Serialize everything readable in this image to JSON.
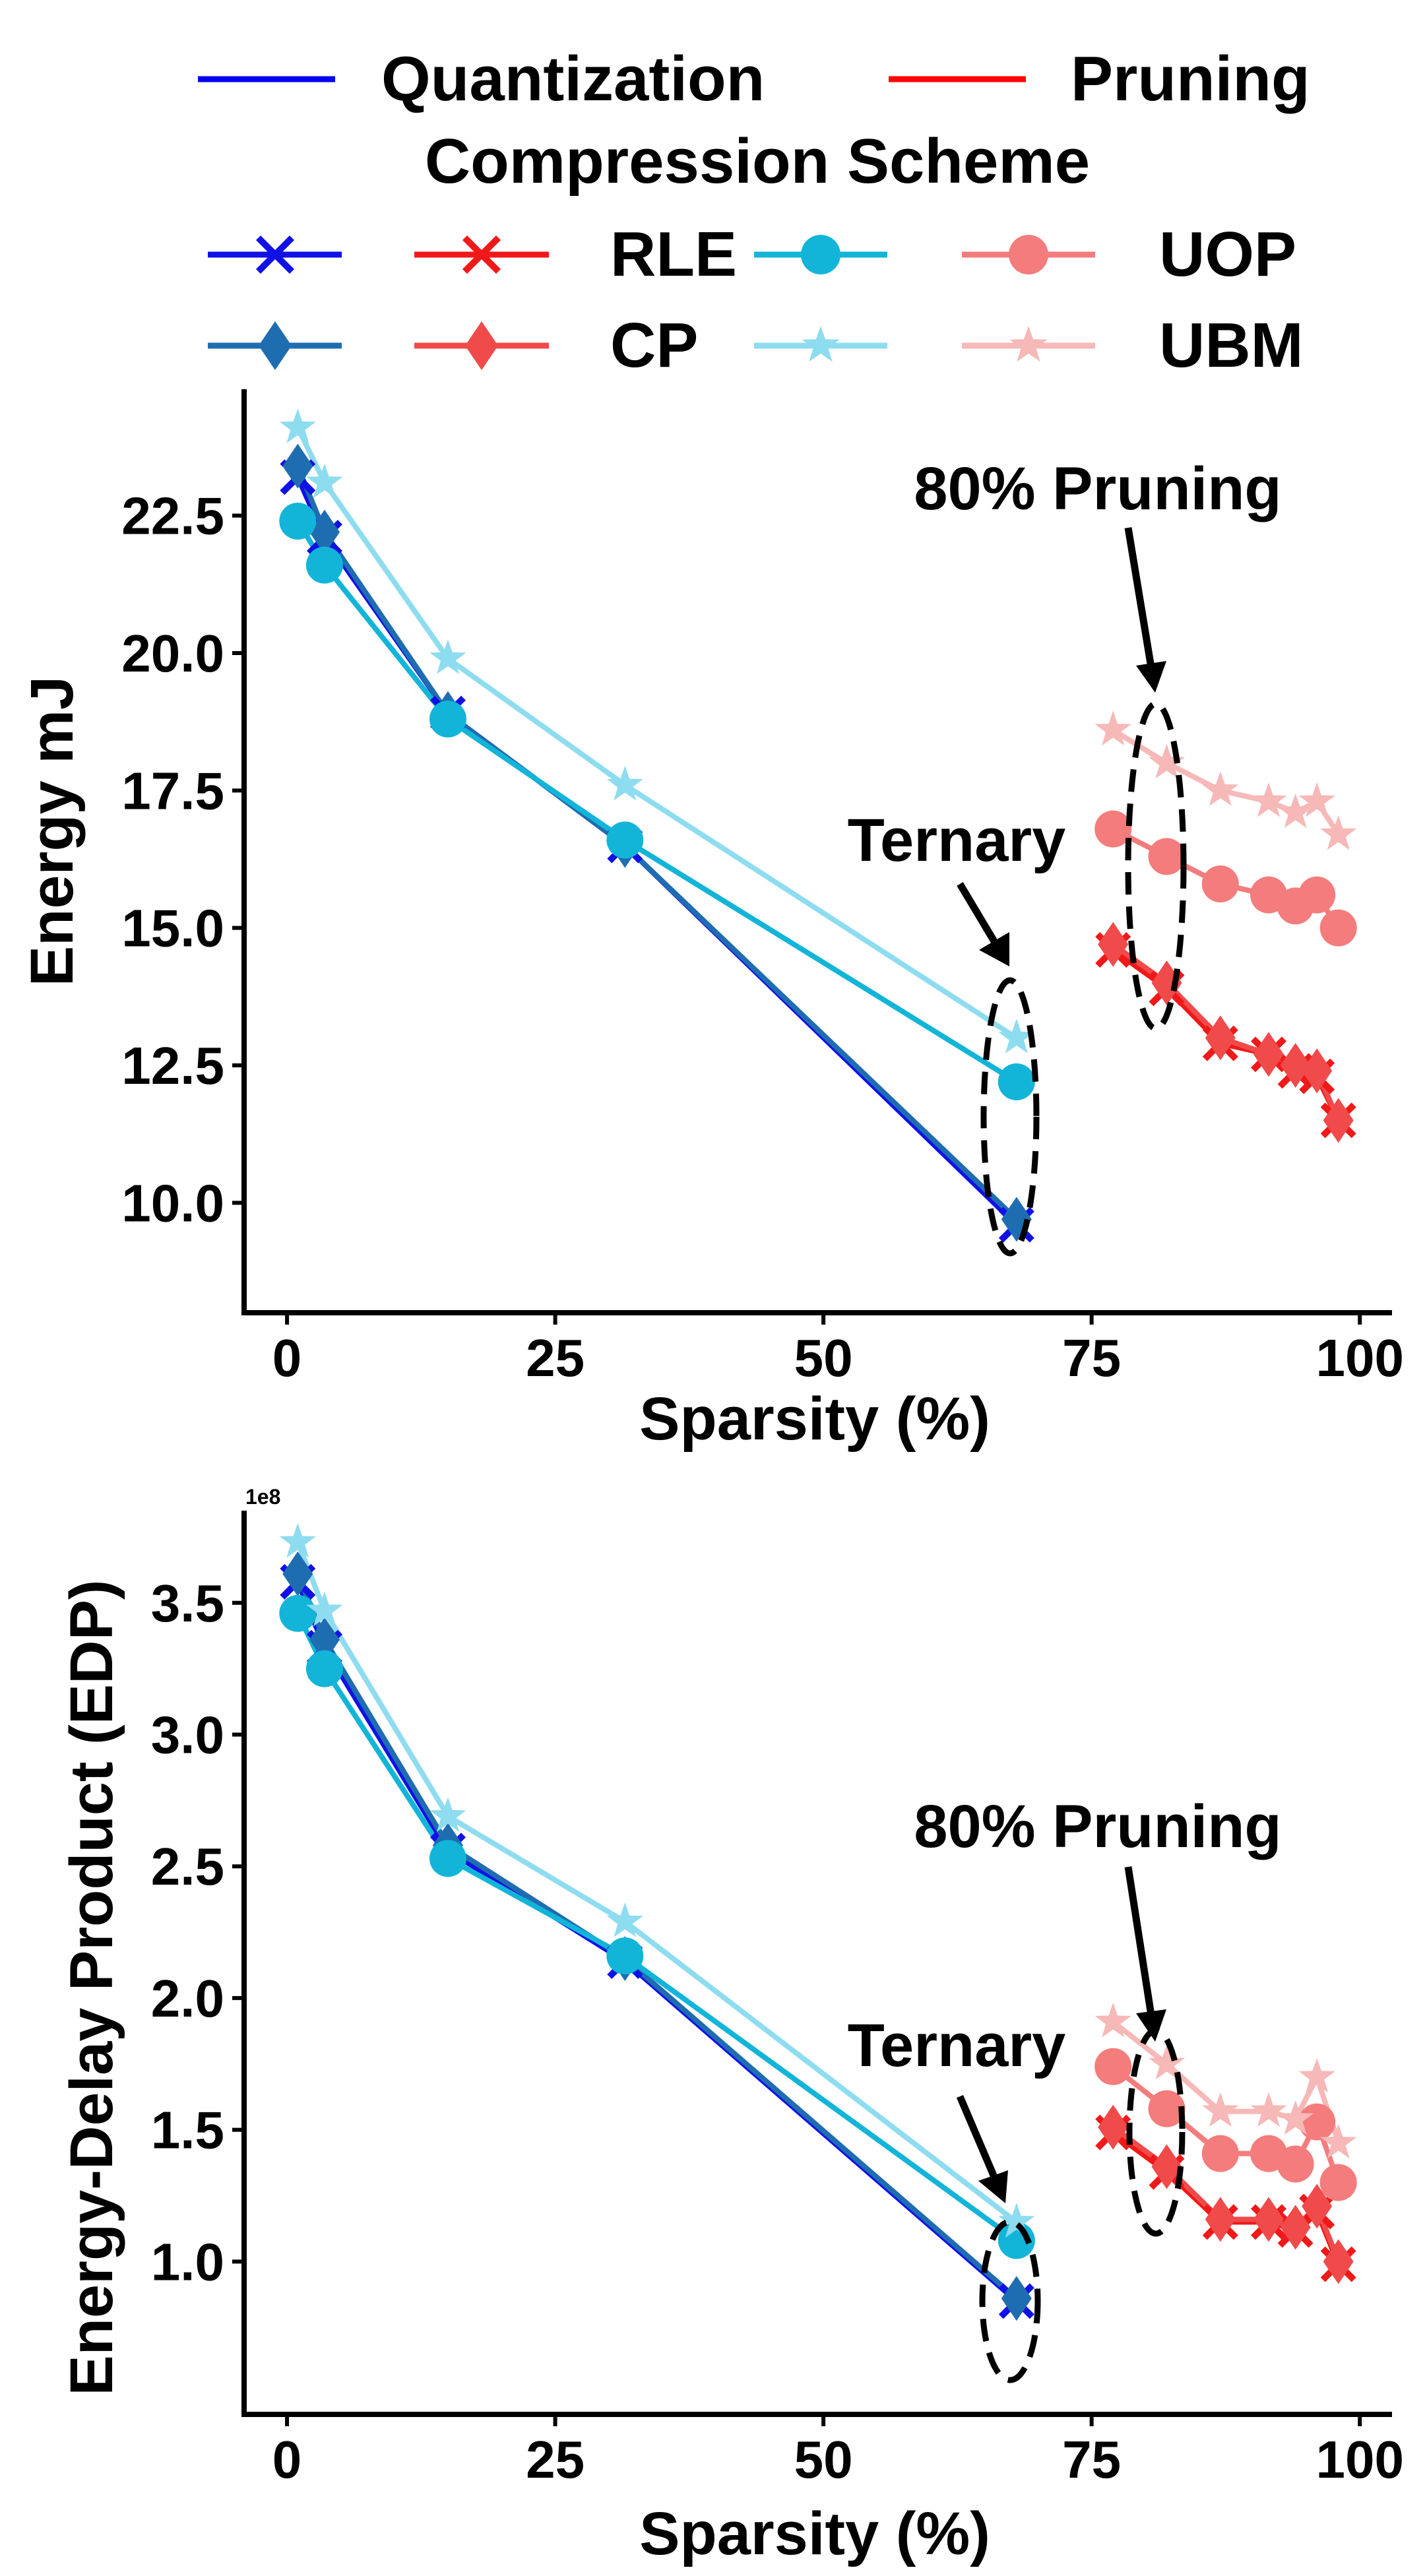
{
  "colors": {
    "quantization": "#0000ee",
    "pruning": "#ff0000",
    "q_rle": "#1111e6",
    "q_cp": "#1f6db1",
    "q_uop": "#12b5d8",
    "q_ubm": "#8edcef",
    "p_rle": "#f01818",
    "p_cp": "#f04a4a",
    "p_uop": "#f47c7c",
    "p_ubm": "#f7b8b8"
  },
  "legend": {
    "quantization": "Quantization",
    "pruning": "Pruning",
    "title": "Compression Scheme",
    "rle": "RLE",
    "cp": "CP",
    "uop": "UOP",
    "ubm": "UBM"
  },
  "chart_data": [
    {
      "type": "line",
      "xlabel": "Sparsity (%)",
      "ylabel": "Energy mJ",
      "xlim": [
        -4,
        103
      ],
      "ylim": [
        8.0,
        24.8
      ],
      "xticks": [
        "0",
        "25",
        "50",
        "75",
        "100"
      ],
      "yticks": [
        "10.0",
        "12.5",
        "15.0",
        "17.5",
        "20.0",
        "22.5"
      ],
      "annotations": [
        "Ternary",
        "80% Pruning"
      ],
      "quantization": {
        "x": [
          1,
          3.5,
          15,
          31.5,
          68
        ],
        "RLE": [
          23.2,
          22.1,
          18.9,
          16.5,
          9.6
        ],
        "CP": [
          23.4,
          22.2,
          18.9,
          16.5,
          9.7
        ],
        "UOP": [
          22.4,
          21.6,
          18.8,
          16.6,
          12.2
        ],
        "UBM": [
          24.1,
          23.1,
          19.9,
          17.6,
          13.0
        ]
      },
      "pruning": {
        "x": [
          77,
          82,
          87,
          91.5,
          94,
          96,
          98
        ],
        "RLE": [
          14.6,
          13.9,
          12.9,
          12.7,
          12.4,
          12.3,
          11.5
        ],
        "CP": [
          14.7,
          14.0,
          13.0,
          12.7,
          12.5,
          12.4,
          11.5
        ],
        "UOP": [
          16.8,
          16.3,
          15.8,
          15.6,
          15.4,
          15.6,
          15.0
        ],
        "UBM": [
          18.6,
          18.0,
          17.5,
          17.3,
          17.1,
          17.3,
          16.7
        ]
      }
    },
    {
      "type": "line",
      "xlabel": "Sparsity (%)",
      "ylabel": "Energy-Delay Product (EDP)",
      "y_exponent_label": "1e8",
      "xlim": [
        -4,
        103
      ],
      "ylim": [
        0.42,
        3.85
      ],
      "xticks": [
        "0",
        "25",
        "50",
        "75",
        "100"
      ],
      "yticks": [
        "1.0",
        "1.5",
        "2.0",
        "2.5",
        "3.0",
        "3.5"
      ],
      "annotations": [
        "Ternary",
        "80% Pruning"
      ],
      "quantization": {
        "x": [
          1,
          3.5,
          15,
          31.5,
          68
        ],
        "RLE": [
          3.58,
          3.33,
          2.56,
          2.14,
          0.85
        ],
        "CP": [
          3.61,
          3.36,
          2.58,
          2.15,
          0.86
        ],
        "UOP": [
          3.46,
          3.25,
          2.53,
          2.16,
          1.08
        ],
        "UBM": [
          3.73,
          3.47,
          2.69,
          2.29,
          1.15
        ]
      },
      "pruning": {
        "x": [
          77,
          82,
          87,
          91.5,
          94,
          96,
          98
        ],
        "RLE": [
          1.49,
          1.34,
          1.15,
          1.15,
          1.12,
          1.19,
          0.99
        ],
        "CP": [
          1.51,
          1.36,
          1.16,
          1.16,
          1.13,
          1.21,
          1.0
        ],
        "UOP": [
          1.74,
          1.58,
          1.41,
          1.41,
          1.37,
          1.53,
          1.3
        ],
        "UBM": [
          1.91,
          1.75,
          1.57,
          1.57,
          1.54,
          1.7,
          1.45
        ]
      }
    }
  ]
}
